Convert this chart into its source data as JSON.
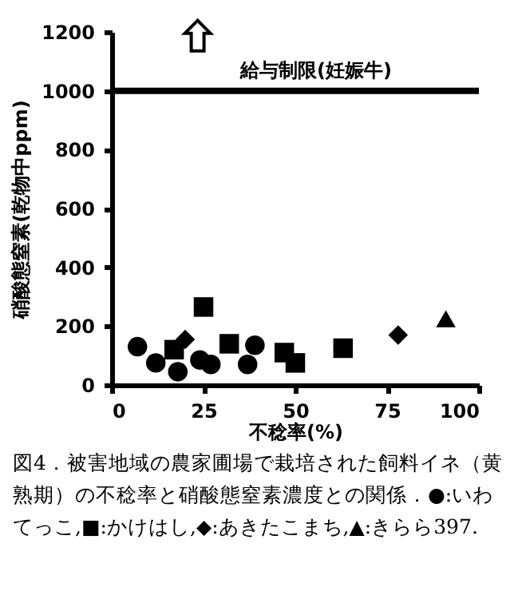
{
  "chart_data": {
    "type": "scatter",
    "xlabel": "不稔率(%)",
    "ylabel": "硝酸態窒素(乾物中ppm)",
    "xlim": [
      0,
      100
    ],
    "xticks": [
      0,
      25,
      50,
      75,
      100
    ],
    "ylim": [
      0,
      1200
    ],
    "yticks": [
      0,
      200,
      400,
      600,
      800,
      1000,
      1200
    ],
    "grid": false,
    "series": [
      {
        "color": "#000000",
        "marker": "circle",
        "x": [
          7,
          12,
          18,
          24,
          27,
          37,
          39
        ],
        "values": [
          130,
          75,
          45,
          85,
          70,
          70,
          135
        ]
      },
      {
        "color": "#000000",
        "marker": "square",
        "x": [
          17,
          25,
          32,
          47,
          50,
          63
        ],
        "values": [
          120,
          265,
          140,
          110,
          75,
          125
        ]
      },
      {
        "color": "#000000",
        "marker": "diamond",
        "x": [
          20,
          78
        ],
        "values": [
          155,
          170
        ]
      },
      {
        "color": "#000000",
        "marker": "triangle",
        "x": [
          91
        ],
        "values": [
          225
        ]
      }
    ],
    "ref_lines": [
      {
        "axis": "y",
        "value": 1000,
        "label": "給与制限(妊娠牛)",
        "color": "#000000",
        "line_style": "solid"
      }
    ],
    "annotations": [
      "図4．被害地域の農家圃場で栽培された飼料イネ（黄熟期）の不稔率と硝酸態窒素濃度との関係．●:いわてっこ,■:かけはし,◆:あきたこまち,▲:きらら397."
    ]
  }
}
